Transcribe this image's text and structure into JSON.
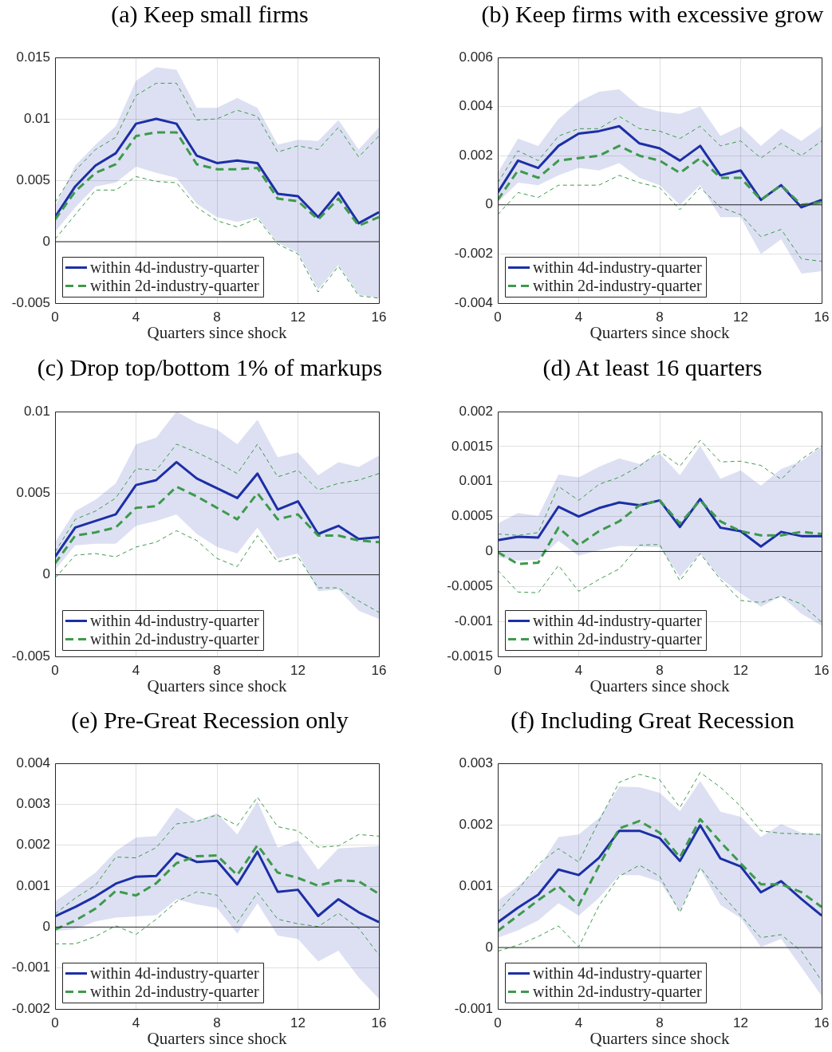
{
  "chart_data": [
    {
      "type": "line",
      "title": "(a) Keep small firms",
      "xlabel": "Quarters since shock",
      "x": [
        0,
        1,
        2,
        3,
        4,
        5,
        6,
        7,
        8,
        9,
        10,
        11,
        12,
        13,
        14,
        15,
        16
      ],
      "xlim": [
        0,
        16
      ],
      "xticks": [
        0,
        4,
        8,
        12,
        16
      ],
      "ylim": [
        -0.005,
        0.015
      ],
      "yticks": [
        -0.005,
        0,
        0.005,
        0.01,
        0.015
      ],
      "grid": true,
      "legend": "bottom left",
      "ref_lines": [
        {
          "axis": "y",
          "value": 0,
          "color": "#262626"
        }
      ],
      "series": [
        {
          "name": "within 4d-industry-quarter",
          "color": "#1c2fa6",
          "line_style": "solid",
          "values": [
            0.002,
            0.0045,
            0.0062,
            0.0072,
            0.0096,
            0.01,
            0.0096,
            0.007,
            0.0064,
            0.0066,
            0.0064,
            0.0039,
            0.0037,
            0.002,
            0.004,
            0.0015,
            0.0024
          ],
          "lower": [
            0.0008,
            0.0028,
            0.0045,
            0.0048,
            0.0061,
            0.0056,
            0.0052,
            0.0031,
            0.002,
            0.0016,
            0.002,
            -0.0001,
            -0.0009,
            -0.0039,
            -0.0019,
            -0.0043,
            -0.0046
          ],
          "upper": [
            0.0029,
            0.0062,
            0.0079,
            0.0094,
            0.0131,
            0.0142,
            0.014,
            0.0109,
            0.0109,
            0.0117,
            0.0109,
            0.0079,
            0.0083,
            0.0082,
            0.0099,
            0.0075,
            0.0093
          ]
        },
        {
          "name": "within 2d-industry-quarter",
          "color": "#3d9a4c",
          "line_style": "dashed",
          "values": [
            0.0018,
            0.0041,
            0.0056,
            0.0063,
            0.0086,
            0.0089,
            0.0089,
            0.0063,
            0.0059,
            0.0059,
            0.006,
            0.0035,
            0.0033,
            0.0018,
            0.0035,
            0.0013,
            0.002
          ]
        },
        {
          "color": "#3d9a4c",
          "line_style": "dashed",
          "values": [
            0.0032,
            0.0058,
            0.0075,
            0.0085,
            0.0119,
            0.0129,
            0.0129,
            0.0099,
            0.01,
            0.0107,
            0.0102,
            0.0073,
            0.0078,
            0.0075,
            0.0093,
            0.0069,
            0.0086
          ]
        },
        {
          "color": "#3d9a4c",
          "line_style": "dashed",
          "values": [
            0.0002,
            0.0022,
            0.0042,
            0.0042,
            0.0053,
            0.0049,
            0.0048,
            0.0028,
            0.0017,
            0.0012,
            0.0019,
            -0.0002,
            -0.001,
            -0.0041,
            -0.002,
            -0.0044,
            -0.0046
          ]
        }
      ]
    },
    {
      "type": "line",
      "title": "(b) Keep firms with excessive grow",
      "xlabel": "Quarters since shock",
      "x": [
        0,
        1,
        2,
        3,
        4,
        5,
        6,
        7,
        8,
        9,
        10,
        11,
        12,
        13,
        14,
        15,
        16
      ],
      "xlim": [
        0,
        16
      ],
      "xticks": [
        0,
        4,
        8,
        12,
        16
      ],
      "ylim": [
        -0.004,
        0.006
      ],
      "yticks": [
        -0.004,
        -0.002,
        0,
        0.002,
        0.004,
        0.006
      ],
      "grid": true,
      "legend": "bottom left",
      "ref_lines": [
        {
          "axis": "y",
          "value": 0,
          "color": "#262626"
        }
      ],
      "series": [
        {
          "name": "within 4d-industry-quarter",
          "color": "#1c2fa6",
          "line_style": "solid",
          "values": [
            0.0005,
            0.0018,
            0.0015,
            0.0024,
            0.0029,
            0.003,
            0.0032,
            0.0025,
            0.0023,
            0.0018,
            0.0024,
            0.0012,
            0.0014,
            0.0002,
            0.0008,
            -0.0001,
            0.0002
          ],
          "lower": [
            0.0001,
            0.0009,
            0.0008,
            0.0012,
            0.0015,
            0.0014,
            0.0017,
            0.0011,
            0.0008,
            0,
            0.0008,
            -0.0005,
            -0.0005,
            -0.002,
            -0.0014,
            -0.0028,
            -0.0027
          ],
          "upper": [
            0.0013,
            0.0027,
            0.0024,
            0.0035,
            0.0042,
            0.0046,
            0.0047,
            0.004,
            0.0038,
            0.0037,
            0.004,
            0.0028,
            0.0032,
            0.0024,
            0.0031,
            0.0026,
            0.0032
          ]
        },
        {
          "name": "within 2d-industry-quarter",
          "color": "#3d9a4c",
          "line_style": "dashed",
          "values": [
            0.0002,
            0.0014,
            0.0011,
            0.0018,
            0.0019,
            0.002,
            0.0024,
            0.002,
            0.0018,
            0.0013,
            0.0019,
            0.0011,
            0.0011,
            0.0002,
            0.0008,
            0,
            0.0001
          ]
        },
        {
          "color": "#3d9a4c",
          "line_style": "dashed",
          "values": [
            0.0009,
            0.0022,
            0.0018,
            0.0028,
            0.0031,
            0.0031,
            0.0036,
            0.0031,
            0.003,
            0.0027,
            0.0032,
            0.0024,
            0.0026,
            0.0019,
            0.0025,
            0.002,
            0.0026
          ]
        },
        {
          "color": "#3d9a4c",
          "line_style": "dashed",
          "values": [
            -0.0004,
            0.0005,
            0.0003,
            0.0008,
            0.0008,
            0.0008,
            0.0012,
            0.0009,
            0.0007,
            -0.0002,
            0.0007,
            -0.0001,
            -0.0004,
            -0.0013,
            -0.001,
            -0.0022,
            -0.0023
          ]
        }
      ]
    },
    {
      "type": "line",
      "title": "(c) Drop top/bottom 1% of markups",
      "xlabel": "Quarters since shock",
      "x": [
        0,
        1,
        2,
        3,
        4,
        5,
        6,
        7,
        8,
        9,
        10,
        11,
        12,
        13,
        14,
        15,
        16
      ],
      "xlim": [
        0,
        16
      ],
      "xticks": [
        0,
        4,
        8,
        12,
        16
      ],
      "ylim": [
        -0.005,
        0.01
      ],
      "yticks": [
        -0.005,
        0,
        0.005,
        0.01
      ],
      "grid": true,
      "legend": "bottom left",
      "ref_lines": [
        {
          "axis": "y",
          "value": 0,
          "color": "#262626"
        }
      ],
      "series": [
        {
          "name": "within 4d-industry-quarter",
          "color": "#1c2fa6",
          "line_style": "solid",
          "values": [
            0.0011,
            0.0029,
            0.0033,
            0.0037,
            0.0055,
            0.0058,
            0.0069,
            0.0059,
            0.0053,
            0.0047,
            0.0062,
            0.004,
            0.0045,
            0.0025,
            0.003,
            0.0022,
            0.0023
          ],
          "lower": [
            0.0003,
            0.0018,
            0.0019,
            0.0019,
            0.003,
            0.0033,
            0.0037,
            0.0025,
            0.0017,
            0.0013,
            0.0029,
            0.001,
            0.0013,
            -0.001,
            -0.0009,
            -0.0022,
            -0.0027
          ],
          "upper": [
            0.002,
            0.0039,
            0.0046,
            0.0056,
            0.008,
            0.0084,
            0.01,
            0.0093,
            0.0089,
            0.008,
            0.0095,
            0.0072,
            0.0075,
            0.0061,
            0.0069,
            0.0066,
            0.0073
          ]
        },
        {
          "name": "within 2d-industry-quarter",
          "color": "#3d9a4c",
          "line_style": "dashed",
          "values": [
            0.0007,
            0.0024,
            0.0026,
            0.0029,
            0.0041,
            0.0042,
            0.0054,
            0.0048,
            0.0041,
            0.0034,
            0.005,
            0.0034,
            0.0037,
            0.0024,
            0.0024,
            0.0021,
            0.002
          ]
        },
        {
          "color": "#3d9a4c",
          "line_style": "dashed",
          "values": [
            0.0014,
            0.0034,
            0.0039,
            0.0047,
            0.0065,
            0.0064,
            0.008,
            0.0075,
            0.0069,
            0.0062,
            0.008,
            0.006,
            0.0064,
            0.0052,
            0.0056,
            0.0058,
            0.0062
          ]
        },
        {
          "color": "#3d9a4c",
          "line_style": "dashed",
          "values": [
            -0.0002,
            0.0012,
            0.0013,
            0.0011,
            0.0017,
            0.002,
            0.0027,
            0.0021,
            0.001,
            0.0005,
            0.0024,
            0.0008,
            0.0011,
            -0.0008,
            -0.0008,
            -0.0016,
            -0.0023
          ]
        }
      ]
    },
    {
      "type": "line",
      "title": "(d) At least 16 quarters",
      "xlabel": "Quarters since shock",
      "x": [
        0,
        1,
        2,
        3,
        4,
        5,
        6,
        7,
        8,
        9,
        10,
        11,
        12,
        13,
        14,
        15,
        16
      ],
      "xlim": [
        0,
        16
      ],
      "xticks": [
        0,
        4,
        8,
        12,
        16
      ],
      "ylim": [
        -0.0015,
        0.002
      ],
      "yticks": [
        -0.0015,
        -0.001,
        -0.0005,
        0,
        0.0005,
        0.001,
        0.0015,
        0.002
      ],
      "grid": true,
      "legend": "bottom left",
      "ref_lines": [
        {
          "axis": "y",
          "value": 0,
          "color": "#262626"
        }
      ],
      "series": [
        {
          "name": "within 4d-industry-quarter",
          "color": "#1c2fa6",
          "line_style": "solid",
          "values": [
            0.00016,
            0.00021,
            0.0002,
            0.00064,
            0.0005,
            0.00062,
            0.0007,
            0.00066,
            0.00073,
            0.00035,
            0.00075,
            0.00034,
            0.00029,
            7e-05,
            0.00028,
            0.00022,
            0.00022
          ],
          "lower": [
            -8e-05,
            -0.00013,
            -0.00012,
            0.00015,
            -6e-05,
            2e-05,
            8e-05,
            7e-05,
            6e-05,
            -0.00036,
            -3e-05,
            -0.00038,
            -0.0006,
            -0.00079,
            -0.00064,
            -0.00089,
            -0.00106
          ],
          "upper": [
            0.0004,
            0.00055,
            0.00051,
            0.0011,
            0.00106,
            0.00121,
            0.00133,
            0.00125,
            0.0014,
            0.00109,
            0.00151,
            0.00104,
            0.00116,
            0.00094,
            0.00118,
            0.00129,
            0.0015
          ]
        },
        {
          "name": "within 2d-industry-quarter",
          "color": "#3d9a4c",
          "line_style": "dashed",
          "values": [
            -1e-05,
            -0.00018,
            -0.00016,
            0.00034,
            9e-05,
            0.00029,
            0.00043,
            0.00066,
            0.00073,
            0.0004,
            0.00073,
            0.00043,
            0.00029,
            0.00023,
            0.00023,
            0.00028,
            0.00025
          ]
        },
        {
          "color": "#3d9a4c",
          "line_style": "dashed",
          "values": [
            0.00025,
            0.00023,
            0.00027,
            0.00093,
            0.00073,
            0.00096,
            0.00106,
            0.00122,
            0.00143,
            0.00122,
            0.00159,
            0.00128,
            0.00129,
            0.00123,
            0.00103,
            0.00132,
            0.00151
          ]
        },
        {
          "color": "#3d9a4c",
          "line_style": "dashed",
          "values": [
            -0.00027,
            -0.00058,
            -0.00059,
            -0.0002,
            -0.00057,
            -0.0004,
            -0.00025,
            9e-05,
            0.0001,
            -0.00042,
            -3e-05,
            -0.0004,
            -0.0007,
            -0.00073,
            -0.00064,
            -0.00075,
            -0.00101
          ]
        }
      ]
    },
    {
      "type": "line",
      "title": "(e) Pre-Great Recession only",
      "xlabel": "Quarters since shock",
      "x": [
        0,
        1,
        2,
        3,
        4,
        5,
        6,
        7,
        8,
        9,
        10,
        11,
        12,
        13,
        14,
        15,
        16
      ],
      "xlim": [
        0,
        16
      ],
      "xticks": [
        0,
        4,
        8,
        12,
        16
      ],
      "ylim": [
        -0.002,
        0.004
      ],
      "yticks": [
        -0.002,
        -0.001,
        0,
        0.001,
        0.002,
        0.003,
        0.004
      ],
      "grid": true,
      "legend": "bottom left",
      "ref_lines": [
        {
          "axis": "y",
          "value": 0,
          "color": "#262626"
        }
      ],
      "series": [
        {
          "name": "within 4d-industry-quarter",
          "color": "#1c2fa6",
          "line_style": "solid",
          "values": [
            0.00026,
            0.00049,
            0.00075,
            0.00106,
            0.00123,
            0.00125,
            0.0018,
            0.00159,
            0.00162,
            0.00104,
            0.00184,
            0.00086,
            0.00091,
            0.00027,
            0.00068,
            0.00036,
            0.00012
          ],
          "lower": [
            -0.0001,
            -5e-05,
            0.00014,
            0.00023,
            0.00026,
            0.00029,
            0.00068,
            0.00055,
            0.00047,
            -0.00016,
            0.00058,
            -0.00021,
            -0.00029,
            -0.00084,
            -0.00058,
            -0.00123,
            -0.00175
          ],
          "upper": [
            0.00063,
            0.00097,
            0.00133,
            0.00185,
            0.00219,
            0.00222,
            0.00292,
            0.0026,
            0.00278,
            0.00226,
            0.00307,
            0.00194,
            0.00211,
            0.0014,
            0.00192,
            0.00195,
            0.00198
          ]
        },
        {
          "name": "within 2d-industry-quarter",
          "color": "#3d9a4c",
          "line_style": "dashed",
          "values": [
            -6e-05,
            0.00016,
            0.00045,
            0.00088,
            0.00077,
            0.00107,
            0.00156,
            0.00173,
            0.00175,
            0.00127,
            0.002,
            0.00133,
            0.0012,
            0.00101,
            0.00114,
            0.00112,
            0.00081
          ]
        },
        {
          "color": "#3d9a4c",
          "line_style": "dashed",
          "values": [
            0.00032,
            0.00071,
            0.00102,
            0.00171,
            0.00169,
            0.00194,
            0.00252,
            0.00258,
            0.00274,
            0.00248,
            0.00317,
            0.00245,
            0.00235,
            0.00195,
            0.00198,
            0.00226,
            0.00222
          ]
        },
        {
          "color": "#3d9a4c",
          "line_style": "dashed",
          "values": [
            -0.00041,
            -0.00041,
            -0.00023,
            3e-05,
            -0.00018,
            0.00019,
            0.00062,
            0.00086,
            0.00078,
            0.00011,
            0.00084,
            0.00019,
            8e-05,
            1e-05,
            0.00034,
            -3e-05,
            -0.00068
          ]
        }
      ]
    },
    {
      "type": "line",
      "title": "(f) Including Great Recession",
      "xlabel": "Quarters since shock",
      "x": [
        0,
        1,
        2,
        3,
        4,
        5,
        6,
        7,
        8,
        9,
        10,
        11,
        12,
        13,
        14,
        15,
        16
      ],
      "xlim": [
        0,
        16
      ],
      "xticks": [
        0,
        4,
        8,
        12,
        16
      ],
      "ylim": [
        -0.001,
        0.003
      ],
      "yticks": [
        -0.001,
        0,
        0.001,
        0.002,
        0.003
      ],
      "grid": true,
      "legend": "bottom left",
      "ref_lines": [
        {
          "axis": "y",
          "value": 0,
          "color": "#262626"
        }
      ],
      "series": [
        {
          "name": "within 4d-industry-quarter",
          "color": "#1c2fa6",
          "line_style": "solid",
          "values": [
            0.00041,
            0.00065,
            0.00086,
            0.00127,
            0.00118,
            0.00146,
            0.0019,
            0.0019,
            0.00178,
            0.00141,
            0.00199,
            0.00145,
            0.00132,
            0.0009,
            0.00108,
            0.00079,
            0.00052
          ],
          "lower": [
            0.00016,
            0.00028,
            0.00044,
            0.00072,
            0.00052,
            0.00081,
            0.00118,
            0.00118,
            0.00107,
            0.00059,
            0.00128,
            0.00069,
            0.00048,
            1e-05,
            0.00014,
            -0.00032,
            -0.00079
          ],
          "upper": [
            0.00076,
            0.001,
            0.00129,
            0.0018,
            0.00184,
            0.00211,
            0.00262,
            0.00261,
            0.00252,
            0.00222,
            0.00271,
            0.00221,
            0.00213,
            0.0018,
            0.00201,
            0.00187,
            0.00185
          ]
        },
        {
          "name": "within 2d-industry-quarter",
          "color": "#3d9a4c",
          "line_style": "dashed",
          "values": [
            0.00027,
            0.00052,
            0.00077,
            0.001,
            0.00069,
            0.00133,
            0.00194,
            0.00206,
            0.00187,
            0.00147,
            0.00209,
            0.00172,
            0.00137,
            0.00103,
            0.00103,
            0.0009,
            0.00066
          ]
        },
        {
          "color": "#3d9a4c",
          "line_style": "dashed",
          "values": [
            0.00058,
            0.00094,
            0.00136,
            0.00161,
            0.00139,
            0.00206,
            0.00269,
            0.00282,
            0.00273,
            0.00228,
            0.00285,
            0.00261,
            0.0023,
            0.0019,
            0.00186,
            0.00185,
            0.00184
          ]
        },
        {
          "color": "#3d9a4c",
          "line_style": "dashed",
          "values": [
            -6e-05,
            4e-05,
            0.00018,
            0.00035,
            1e-05,
            0.00068,
            0.00116,
            0.00134,
            0.00116,
            0.00057,
            0.0013,
            0.00089,
            0.00052,
            0.00016,
            0.00021,
            -6e-05,
            -0.00054
          ]
        }
      ]
    }
  ]
}
